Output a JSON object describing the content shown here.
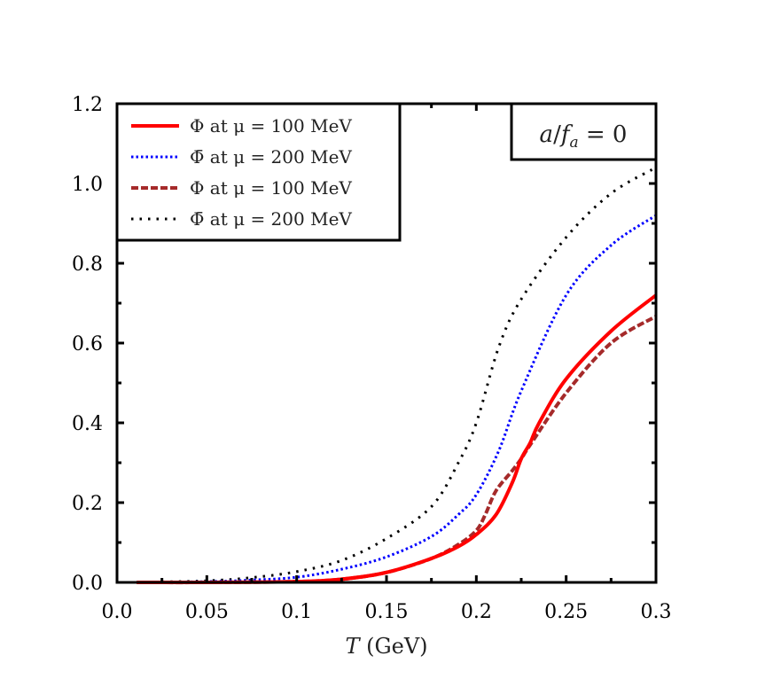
{
  "chart_data": {
    "type": "line",
    "title": "",
    "xlabel": "T (GeV)",
    "ylabel": "",
    "xlim": [
      0.0,
      0.3
    ],
    "ylim": [
      0.0,
      1.2
    ],
    "grid": false,
    "legend_position": "upper left",
    "x_ticks": [
      "0.0",
      "0.05",
      "0.1",
      "0.15",
      "0.2",
      "0.25",
      "0.3"
    ],
    "x_tick_values": [
      0.0,
      0.05,
      0.1,
      0.15,
      0.2,
      0.25,
      0.3
    ],
    "y_ticks": [
      "0.0",
      "0.2",
      "0.4",
      "0.6",
      "0.8",
      "1.0",
      "1.2"
    ],
    "y_tick_values": [
      0.0,
      0.2,
      0.4,
      0.6,
      0.8,
      1.0,
      1.2
    ],
    "annotation": "a/f_a = 0",
    "series": [
      {
        "name": "Φ at μ = 100 MeV",
        "legend_symbol": "Φ",
        "legend_rest": " at μ = 100 MeV",
        "bar": false,
        "color": "#ff0000",
        "style": "solid",
        "x": [
          0.011,
          0.05,
          0.1,
          0.125,
          0.15,
          0.175,
          0.19,
          0.2,
          0.211,
          0.22,
          0.225,
          0.23,
          0.235,
          0.25,
          0.275,
          0.3
        ],
        "y": [
          0.0,
          0.0,
          0.002,
          0.008,
          0.025,
          0.06,
          0.09,
          0.12,
          0.17,
          0.25,
          0.31,
          0.35,
          0.4,
          0.51,
          0.63,
          0.72
        ]
      },
      {
        "name": "Φ̄ at μ = 200 MeV",
        "legend_symbol": "Φ̄",
        "legend_rest": " at μ = 200 MeV",
        "bar": true,
        "color": "#0000ff",
        "style": "dotted",
        "x": [
          0.011,
          0.05,
          0.075,
          0.1,
          0.125,
          0.15,
          0.175,
          0.19,
          0.2,
          0.2125,
          0.225,
          0.25,
          0.275,
          0.3
        ],
        "y": [
          0.0,
          0.002,
          0.006,
          0.013,
          0.033,
          0.064,
          0.115,
          0.17,
          0.22,
          0.33,
          0.48,
          0.72,
          0.845,
          0.92
        ]
      },
      {
        "name": "Φ at μ = 100 MeV",
        "legend_symbol": "Φ",
        "legend_rest": " at μ = 100 MeV",
        "bar": false,
        "color": "#a52a2a",
        "style": "dashed",
        "x": [
          0.011,
          0.05,
          0.1,
          0.125,
          0.15,
          0.175,
          0.19,
          0.2,
          0.205,
          0.211,
          0.22,
          0.225,
          0.23,
          0.25,
          0.275,
          0.3
        ],
        "y": [
          0.0,
          0.0,
          0.002,
          0.008,
          0.025,
          0.06,
          0.095,
          0.13,
          0.17,
          0.23,
          0.28,
          0.31,
          0.345,
          0.475,
          0.6,
          0.667
        ]
      },
      {
        "name": "Φ̄ at μ = 200 MeV",
        "legend_symbol": "Φ̄",
        "legend_rest": " at μ = 200 MeV",
        "bar": true,
        "color": "#000000",
        "style": "dotted-sparse",
        "x": [
          0.011,
          0.05,
          0.075,
          0.1,
          0.125,
          0.15,
          0.175,
          0.19,
          0.2,
          0.2125,
          0.225,
          0.25,
          0.275,
          0.3
        ],
        "y": [
          0.0,
          0.004,
          0.012,
          0.027,
          0.055,
          0.11,
          0.19,
          0.3,
          0.4,
          0.59,
          0.71,
          0.865,
          0.975,
          1.04
        ]
      }
    ]
  },
  "axis": {
    "xlabel_italic": "T",
    "xlabel_rest": " (GeV)"
  },
  "annotation": {
    "a": "a",
    "slash": "/",
    "f": "f",
    "sub": "a",
    "eq": " = 0"
  }
}
